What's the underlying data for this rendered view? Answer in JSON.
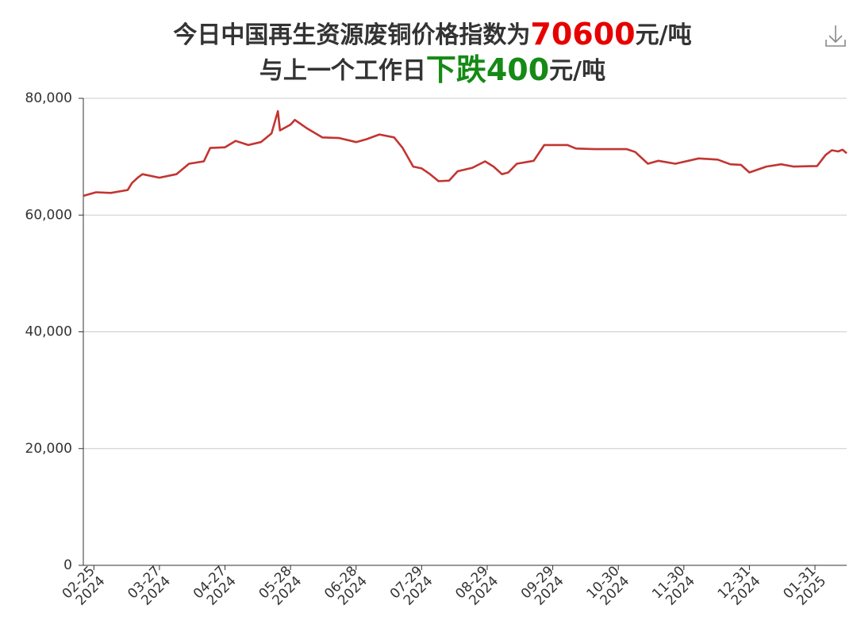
{
  "chart_data": {
    "type": "line",
    "title_lines": [
      [
        {
          "text": "今日中国再生资源废铜价格指数为",
          "color": "#333333"
        },
        {
          "text": "70600",
          "color": "#e60000"
        },
        {
          "text": "元/吨",
          "color": "#333333"
        }
      ],
      [
        {
          "text": "与上一个工作日",
          "color": "#333333"
        },
        {
          "text": "下跌400",
          "color": "#158a15"
        },
        {
          "text": "元/吨",
          "color": "#333333"
        }
      ]
    ],
    "x": [
      "2024-02-20",
      "2024-02-26",
      "2024-03-04",
      "2024-03-12",
      "2024-03-14",
      "2024-03-17",
      "2024-03-19",
      "2024-03-27",
      "2024-04-04",
      "2024-04-10",
      "2024-04-17",
      "2024-04-20",
      "2024-04-27",
      "2024-05-02",
      "2024-05-08",
      "2024-05-14",
      "2024-05-19",
      "2024-05-22",
      "2024-05-23",
      "2024-05-28",
      "2024-05-30",
      "2024-06-05",
      "2024-06-12",
      "2024-06-20",
      "2024-06-28",
      "2024-07-03",
      "2024-07-09",
      "2024-07-16",
      "2024-07-20",
      "2024-07-25",
      "2024-07-29",
      "2024-08-02",
      "2024-08-06",
      "2024-08-11",
      "2024-08-15",
      "2024-08-22",
      "2024-08-28",
      "2024-09-01",
      "2024-09-05",
      "2024-09-08",
      "2024-09-12",
      "2024-09-20",
      "2024-09-25",
      "2024-10-06",
      "2024-10-10",
      "2024-10-19",
      "2024-11-03",
      "2024-11-07",
      "2024-11-13",
      "2024-11-18",
      "2024-11-26",
      "2024-12-07",
      "2024-12-16",
      "2024-12-22",
      "2024-12-27",
      "2024-12-31",
      "2025-01-08",
      "2025-01-15",
      "2025-01-21",
      "2025-02-01",
      "2025-02-05",
      "2025-02-08",
      "2025-02-11",
      "2025-02-13",
      "2025-02-15"
    ],
    "series": [
      {
        "color": "#c23531",
        "values": [
          63300,
          63900,
          63800,
          64300,
          65500,
          66500,
          67000,
          66400,
          67000,
          68800,
          69200,
          71500,
          71600,
          72700,
          72000,
          72500,
          74000,
          77800,
          74500,
          75500,
          76300,
          74800,
          73300,
          73200,
          72500,
          73000,
          73800,
          73300,
          71500,
          68300,
          68000,
          67000,
          65800,
          65900,
          67500,
          68100,
          69200,
          68300,
          67000,
          67300,
          68800,
          69300,
          72000,
          72000,
          71400,
          71300,
          71300,
          70800,
          68800,
          69300,
          68800,
          69700,
          69500,
          68700,
          68600,
          67300,
          68300,
          68700,
          68300,
          68400,
          70300,
          71100,
          70900,
          71200,
          70600
        ]
      }
    ],
    "xlim": [
      "2024-02-20",
      "2025-02-15"
    ],
    "xticks": [
      {
        "value": "2024-02-25",
        "label": [
          "02-25",
          "2024"
        ]
      },
      {
        "value": "2024-03-27",
        "label": [
          "03-27",
          "2024"
        ]
      },
      {
        "value": "2024-04-27",
        "label": [
          "04-27",
          "2024"
        ]
      },
      {
        "value": "2024-05-28",
        "label": [
          "05-28",
          "2024"
        ]
      },
      {
        "value": "2024-06-28",
        "label": [
          "06-28",
          "2024"
        ]
      },
      {
        "value": "2024-07-29",
        "label": [
          "07-29",
          "2024"
        ]
      },
      {
        "value": "2024-08-29",
        "label": [
          "08-29",
          "2024"
        ]
      },
      {
        "value": "2024-09-29",
        "label": [
          "09-29",
          "2024"
        ]
      },
      {
        "value": "2024-10-30",
        "label": [
          "10-30",
          "2024"
        ]
      },
      {
        "value": "2024-11-30",
        "label": [
          "11-30",
          "2024"
        ]
      },
      {
        "value": "2024-12-31",
        "label": [
          "12-31",
          "2024"
        ]
      },
      {
        "value": "2025-01-31",
        "label": [
          "01-31",
          "2025"
        ]
      }
    ],
    "ylim": [
      0,
      80000
    ],
    "yticks": [
      0,
      {
        "value": 20000,
        "label": "20,000"
      },
      {
        "value": 40000,
        "label": "40,000"
      },
      {
        "value": 60000,
        "label": "60,000"
      },
      {
        "value": 80000,
        "label": "80,000"
      }
    ],
    "grid": true
  }
}
